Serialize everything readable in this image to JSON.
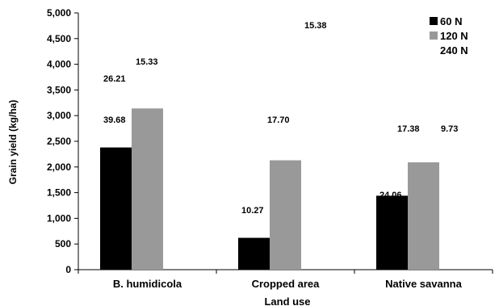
{
  "chart_data": {
    "type": "bar",
    "title": "",
    "xlabel": "Land use",
    "ylabel": "Grain yield (kg/ha)",
    "ylim": [
      0,
      5000
    ],
    "yticks": [
      0,
      500,
      1000,
      1500,
      2000,
      2500,
      3000,
      3500,
      4000,
      4500,
      5000
    ],
    "ytick_labels": [
      "0",
      "500",
      "1,000",
      "1,500",
      "2,000",
      "2,500",
      "3,000",
      "3,500",
      "4,000",
      "4,500",
      "5,000"
    ],
    "categories": [
      "B. humidicola",
      "Cropped area",
      "Native savanna"
    ],
    "grid": false,
    "legend_position": "top-right",
    "series": [
      {
        "name": "60 N",
        "color": "#000000",
        "values": [
          2380,
          620,
          1440
        ],
        "labels": [
          "39.68",
          "10.27",
          "24.06"
        ]
      },
      {
        "name": "120 N",
        "color": "#999999",
        "values": [
          3140,
          2130,
          2090
        ],
        "labels": [
          "26.21",
          "17.70",
          "17.38"
        ]
      },
      {
        "name": "240 N",
        "color": "#ffffff",
        "values": [
          null,
          null,
          null
        ],
        "labels": [
          "15.33",
          "15.38",
          "9.73"
        ]
      }
    ]
  }
}
